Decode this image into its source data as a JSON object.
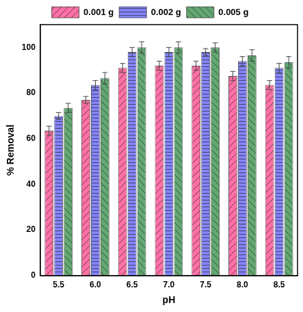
{
  "chart_data": {
    "type": "bar",
    "x_label": "pH",
    "y_label": "% Removal",
    "categories": [
      "5.5",
      "6.0",
      "6.5",
      "7.0",
      "7.5",
      "8.0",
      "8.5"
    ],
    "series": [
      {
        "name": "0.001 g",
        "color": "#ff70a6",
        "values": [
          63.5,
          77,
          91,
          92,
          92,
          87.5,
          83.5
        ],
        "errors": [
          2,
          1.5,
          2,
          2,
          2,
          2,
          2
        ]
      },
      {
        "name": "0.002 g",
        "color": "#8484ff",
        "values": [
          70,
          83.5,
          98,
          98,
          98,
          94,
          91
        ],
        "errors": [
          1.5,
          2,
          2,
          2,
          1.5,
          2,
          2
        ]
      },
      {
        "name": "0.005 g",
        "color": "#62a872",
        "values": [
          73.5,
          86.5,
          100,
          100,
          100,
          96.5,
          93.5
        ],
        "errors": [
          2,
          2.5,
          2.5,
          2.5,
          2,
          2.5,
          2.5
        ]
      }
    ],
    "ylim": [
      0,
      110
    ],
    "yticks": [
      0,
      20,
      40,
      60,
      80,
      100
    ],
    "grid": false,
    "legend": "top"
  }
}
